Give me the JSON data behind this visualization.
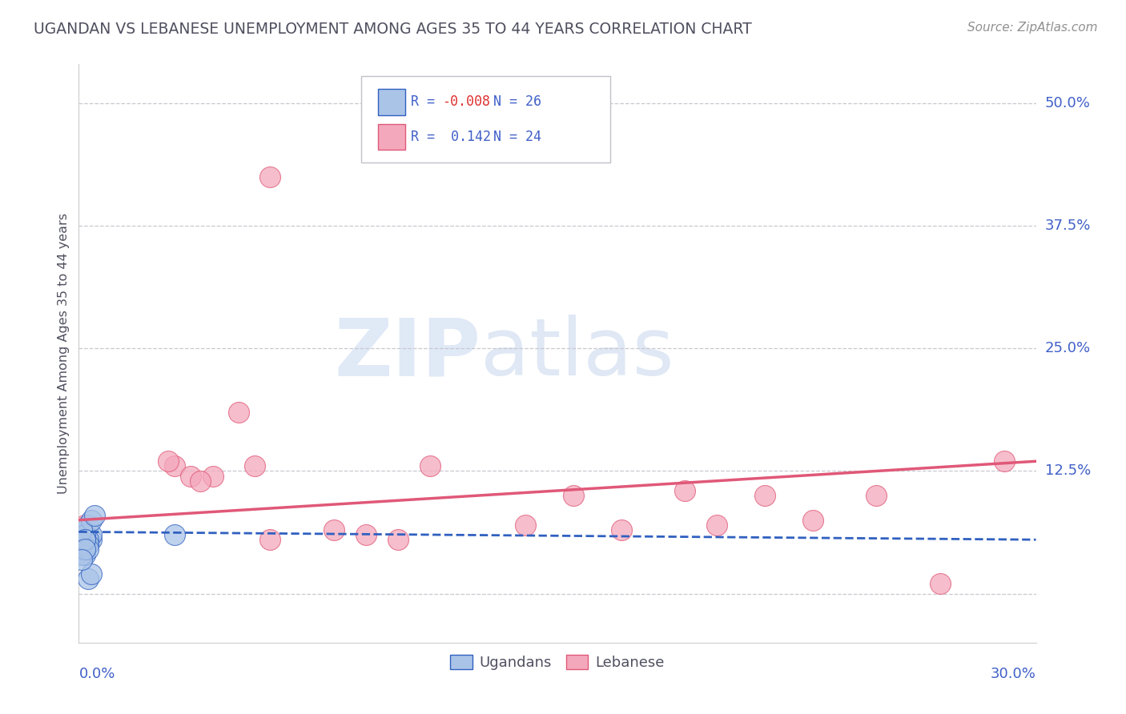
{
  "title": "UGANDAN VS LEBANESE UNEMPLOYMENT AMONG AGES 35 TO 44 YEARS CORRELATION CHART",
  "source": "Source: ZipAtlas.com",
  "ylabel": "Unemployment Among Ages 35 to 44 years",
  "ytick_labels": [
    "0.0%",
    "12.5%",
    "25.0%",
    "37.5%",
    "50.0%"
  ],
  "ytick_values": [
    0.0,
    0.125,
    0.25,
    0.375,
    0.5
  ],
  "xtick_labels": [
    "0.0%",
    "30.0%"
  ],
  "xtick_values": [
    0.0,
    0.3
  ],
  "xlim": [
    0.0,
    0.3
  ],
  "ylim": [
    -0.05,
    0.54
  ],
  "ugandan_R": -0.008,
  "ugandan_N": 26,
  "lebanese_R": 0.142,
  "lebanese_N": 24,
  "ugandan_color": "#aac4e8",
  "lebanese_color": "#f4a8bc",
  "ugandan_line_color": "#3060c0",
  "lebanese_line_color": "#e05878",
  "background_color": "#ffffff",
  "grid_color": "#c8c8d0",
  "title_color": "#505060",
  "source_color": "#909090",
  "axis_label_color": "#4060c8",
  "legend_r_color_neg": "#e05050",
  "legend_r_color_pos": "#3070d0",
  "watermark_zip_color": "#c8d8f0",
  "watermark_atlas_color": "#b0c8e8",
  "ugandan_x": [
    0.002,
    0.003,
    0.004,
    0.001,
    0.002,
    0.003,
    0.004,
    0.002,
    0.001,
    0.003,
    0.002,
    0.001,
    0.003,
    0.002,
    0.004,
    0.001,
    0.002,
    0.003,
    0.001,
    0.002,
    0.03,
    0.005,
    0.002,
    0.003,
    0.004,
    0.001
  ],
  "ugandan_y": [
    0.06,
    0.05,
    0.055,
    0.045,
    0.04,
    0.07,
    0.06,
    0.05,
    0.065,
    0.055,
    0.045,
    0.04,
    0.05,
    0.06,
    0.075,
    0.05,
    0.055,
    0.045,
    0.065,
    0.055,
    0.06,
    0.08,
    0.045,
    0.015,
    0.02,
    0.035
  ],
  "lebanese_x": [
    0.002,
    0.03,
    0.035,
    0.028,
    0.042,
    0.038,
    0.05,
    0.055,
    0.06,
    0.08,
    0.09,
    0.1,
    0.11,
    0.14,
    0.155,
    0.17,
    0.19,
    0.2,
    0.215,
    0.23,
    0.25,
    0.27,
    0.29,
    0.06
  ],
  "lebanese_y": [
    0.07,
    0.13,
    0.12,
    0.135,
    0.12,
    0.115,
    0.185,
    0.13,
    0.055,
    0.065,
    0.06,
    0.055,
    0.13,
    0.07,
    0.1,
    0.065,
    0.105,
    0.07,
    0.1,
    0.075,
    0.1,
    0.01,
    0.135,
    0.425
  ]
}
